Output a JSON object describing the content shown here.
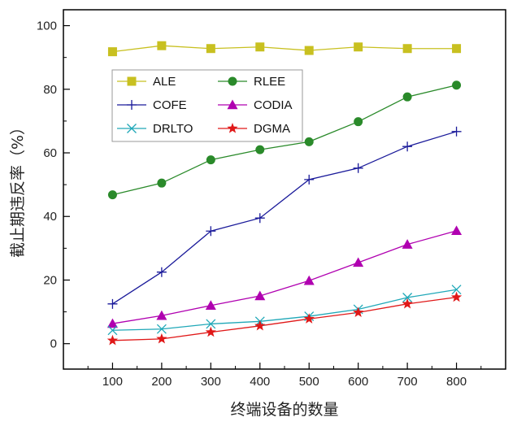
{
  "chart_data": {
    "type": "line",
    "xlabel": "终端设备的数量",
    "ylabel": "截止期违反率（%）",
    "x": [
      100,
      200,
      300,
      400,
      500,
      600,
      700,
      800
    ],
    "xlim": [
      0,
      900
    ],
    "ylim": [
      -8,
      105
    ],
    "yticks": [
      0,
      20,
      40,
      60,
      80,
      100
    ],
    "grid": false,
    "legend_placement": "top-left",
    "series": [
      {
        "name": "ALE",
        "color": "#c8c020",
        "marker": "square",
        "values": [
          91.8,
          93.7,
          92.8,
          93.3,
          92.2,
          93.3,
          92.8,
          92.8
        ]
      },
      {
        "name": "RLEE",
        "color": "#2a8a2a",
        "marker": "circle",
        "values": [
          46.8,
          50.5,
          57.8,
          61.0,
          63.5,
          69.8,
          77.6,
          81.3
        ]
      },
      {
        "name": "COFE",
        "color": "#1a1a9a",
        "marker": "plus",
        "values": [
          12.5,
          22.5,
          35.4,
          39.5,
          51.6,
          55.2,
          62.0,
          66.7
        ]
      },
      {
        "name": "CODIA",
        "color": "#b000b0",
        "marker": "triangle",
        "values": [
          6.3,
          8.8,
          12.0,
          15.0,
          19.8,
          25.5,
          31.2,
          35.5
        ]
      },
      {
        "name": "DRLTO",
        "color": "#20a8b8",
        "marker": "x",
        "values": [
          4.2,
          4.6,
          6.2,
          7.0,
          8.6,
          10.8,
          14.5,
          17.0
        ]
      },
      {
        "name": "DGMA",
        "color": "#e01818",
        "marker": "star",
        "values": [
          1.0,
          1.5,
          3.6,
          5.6,
          7.8,
          9.8,
          12.5,
          14.6
        ]
      }
    ]
  }
}
